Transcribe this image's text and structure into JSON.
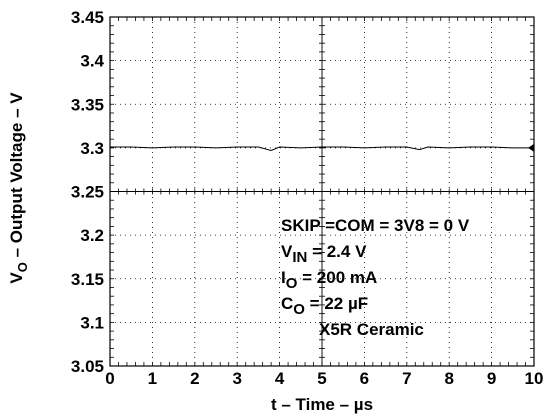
{
  "chart_data": {
    "type": "line",
    "title": "",
    "xlabel": "t – Time – µs",
    "ylabel_main": "V",
    "ylabel_sub": "O",
    "ylabel_rest": " – Output Voltage – V",
    "xlim": [
      0,
      10
    ],
    "ylim": [
      3.05,
      3.45
    ],
    "x_ticks": [
      "0",
      "1",
      "2",
      "3",
      "4",
      "5",
      "6",
      "7",
      "8",
      "9",
      "10"
    ],
    "y_ticks": [
      "3.05",
      "3.1",
      "3.15",
      "3.2",
      "3.25",
      "3.3",
      "3.35",
      "3.4",
      "3.45"
    ],
    "grid": "dotted",
    "series": [
      {
        "x": [
          0,
          0.5,
          1,
          1.5,
          2,
          2.5,
          3,
          3.5,
          3.8,
          4,
          4.5,
          5,
          5.5,
          6,
          6.5,
          7,
          7.3,
          7.5,
          8,
          8.5,
          9,
          9.5,
          10
        ],
        "y": [
          3.301,
          3.301,
          3.3,
          3.301,
          3.301,
          3.3,
          3.301,
          3.301,
          3.297,
          3.301,
          3.3,
          3.301,
          3.301,
          3.3,
          3.301,
          3.301,
          3.298,
          3.301,
          3.3,
          3.301,
          3.301,
          3.3,
          3.3
        ],
        "color": "#000000"
      }
    ],
    "annotations": {
      "line1": "SKIP =COM = 3V8 = 0 V",
      "line2_main": "V",
      "line2_sub": "IN",
      "line2_rest": " = 2.4 V",
      "line3_main": "I",
      "line3_sub": "O",
      "line3_rest": " = 200 mA",
      "line4_main": "C",
      "line4_sub": "O",
      "line4_rest": " = 22 µF",
      "line5": "X5R Ceramic"
    }
  }
}
